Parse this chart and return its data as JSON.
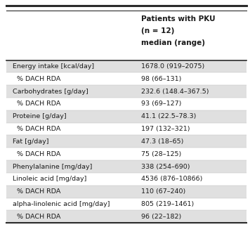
{
  "header_col2_line1": "Patients with PKU",
  "header_col2_line2": "(n = 12)",
  "header_col2_line3": "median (range)",
  "rows": [
    {
      "label": "Energy intake [kcal/day]",
      "value": "1678.0 (919–2075)",
      "indent": false,
      "shaded": true
    },
    {
      "label": "  % DACH RDA",
      "value": "98 (66–131)",
      "indent": true,
      "shaded": false
    },
    {
      "label": "Carbohydrates [g/day]",
      "value": "232.6 (148.4–367.5)",
      "indent": false,
      "shaded": true
    },
    {
      "label": "  % DACH RDA",
      "value": "93 (69–127)",
      "indent": true,
      "shaded": false
    },
    {
      "label": "Proteine [g/day]",
      "value": "41.1 (22.5–78.3)",
      "indent": false,
      "shaded": true
    },
    {
      "label": "  % DACH RDA",
      "value": "197 (132–321)",
      "indent": true,
      "shaded": false
    },
    {
      "label": "Fat [g/day]",
      "value": "47.3 (18–65)",
      "indent": false,
      "shaded": true
    },
    {
      "label": "  % DACH RDA",
      "value": "75 (28–125)",
      "indent": true,
      "shaded": false
    },
    {
      "label": "Phenylalanine [mg/day]",
      "value": "338 (254–690)",
      "indent": false,
      "shaded": true
    },
    {
      "label": "Linoleic acid [mg/day]",
      "value": "4536 (876–10866)",
      "indent": false,
      "shaded": false
    },
    {
      "label": "  % DACH RDA",
      "value": "110 (67–240)",
      "indent": true,
      "shaded": true
    },
    {
      "label": "alpha-linolenic acid [mg/day]",
      "value": "805 (219–1461)",
      "indent": false,
      "shaded": false
    },
    {
      "label": "  % DACH RDA",
      "value": "96 (22–182)",
      "indent": true,
      "shaded": true
    }
  ],
  "shaded_color": "#e0e0e0",
  "white_color": "#ffffff",
  "border_color": "#2b2b2b",
  "text_color": "#1a1a1a",
  "font_size": 6.8,
  "header_font_size": 7.5,
  "col_split": 0.535
}
